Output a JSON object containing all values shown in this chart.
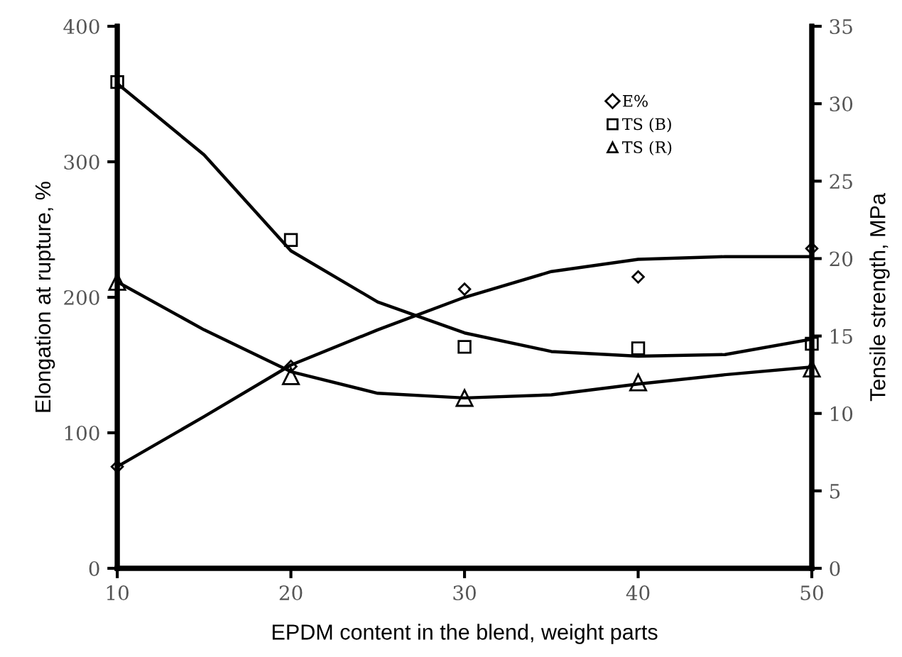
{
  "chart_data": {
    "type": "scatter",
    "xlabel": "EPDM content in the blend, weight parts",
    "ylabel": "Elongation at rupture, %",
    "y2label": "Tensile strength, MPa",
    "x": [
      10,
      20,
      30,
      40,
      50
    ],
    "xlim": [
      10,
      50
    ],
    "xticks": [
      10,
      20,
      30,
      40,
      50
    ],
    "ylim": [
      0,
      400
    ],
    "yticks": [
      0,
      100,
      200,
      300,
      400
    ],
    "y2lim": [
      0,
      35
    ],
    "y2ticks": [
      0,
      5,
      10,
      15,
      20,
      25,
      30,
      35
    ],
    "grid": false,
    "legend": "top right",
    "series": [
      {
        "name": "E%",
        "marker": "diamond",
        "color": "#000000",
        "values": [
          75,
          149,
          206,
          215,
          236
        ]
      },
      {
        "name": "TS (B)",
        "marker": "square",
        "color": "#000000",
        "axis": "y2",
        "values": [
          31.4,
          21.2,
          14.3,
          14.2,
          14.5
        ]
      },
      {
        "name": "TS (R)",
        "marker": "triangle",
        "color": "#000000",
        "axis": "y2",
        "values": [
          18.5,
          12.4,
          11.0,
          12.0,
          12.9
        ]
      },
      {
        "type": "line",
        "color": "#000000",
        "x": [
          10,
          15,
          20,
          25,
          30,
          35,
          40,
          45,
          50
        ],
        "values": [
          75,
          112,
          150,
          176,
          200,
          219,
          228,
          230,
          230
        ]
      },
      {
        "type": "line",
        "color": "#000000",
        "axis": "y2",
        "x": [
          10,
          15,
          20,
          25,
          30,
          35,
          40,
          45,
          50
        ],
        "values": [
          31.3,
          26.7,
          20.5,
          17.2,
          15.2,
          14.0,
          13.7,
          13.8,
          14.8
        ]
      },
      {
        "type": "line",
        "color": "#000000",
        "axis": "y2",
        "x": [
          10,
          15,
          20,
          25,
          30,
          35,
          40,
          45,
          50
        ],
        "values": [
          18.5,
          15.4,
          12.7,
          11.3,
          11.0,
          11.2,
          11.9,
          12.5,
          13.0
        ]
      }
    ]
  }
}
